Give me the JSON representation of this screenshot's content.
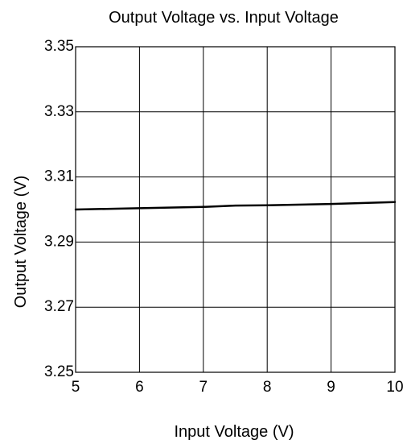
{
  "chart_data": {
    "type": "line",
    "title": "Output Voltage vs. Input Voltage",
    "xlabel": "Input Voltage (V)",
    "ylabel": "Output Voltage (V)",
    "xlim": [
      5,
      10
    ],
    "ylim": [
      3.25,
      3.35
    ],
    "xticks": [
      5,
      6,
      7,
      8,
      9,
      10
    ],
    "yticks": [
      3.25,
      3.27,
      3.29,
      3.31,
      3.33,
      3.35
    ],
    "xtick_labels": [
      "5",
      "6",
      "7",
      "8",
      "9",
      "10"
    ],
    "ytick_labels": [
      "3.25",
      "3.27",
      "3.29",
      "3.31",
      "3.33",
      "3.35"
    ],
    "grid": true,
    "series": [
      {
        "color": "#000000",
        "x": [
          5,
          6,
          7,
          7.5,
          8,
          9,
          10
        ],
        "y": [
          3.3,
          3.3004,
          3.3008,
          3.3012,
          3.3013,
          3.3017,
          3.3023
        ]
      }
    ]
  }
}
